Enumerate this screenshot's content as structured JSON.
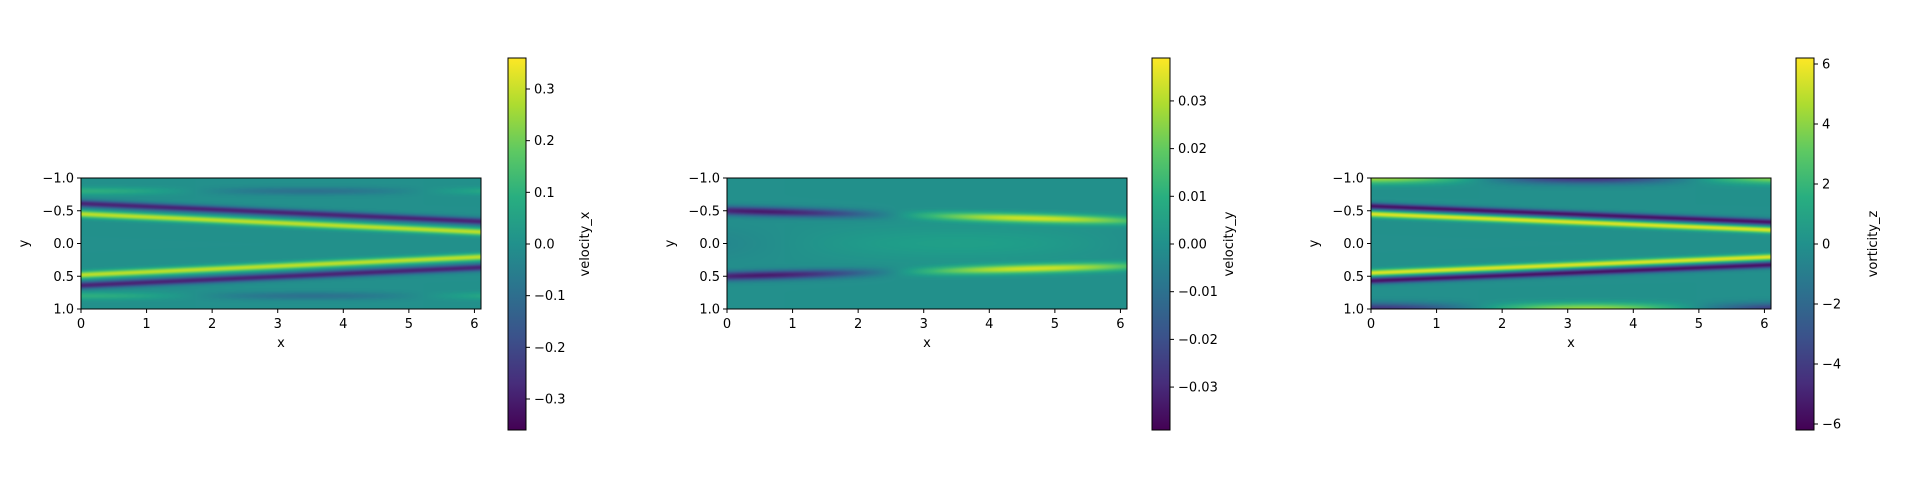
{
  "chart_data": [
    {
      "type": "heatmap",
      "field": "velocity_x",
      "xlabel": "x",
      "ylabel": "y",
      "x_ticks": [
        "0",
        "1",
        "2",
        "3",
        "4",
        "5",
        "6"
      ],
      "y_ticks": [
        "−1.0",
        "−0.5",
        "0.0",
        "0.5",
        "1.0"
      ],
      "xlim": [
        0,
        6.1
      ],
      "ylim": [
        1.0,
        -1.0
      ],
      "colorbar": {
        "label": "velocity_x",
        "range": [
          -0.36,
          0.36
        ],
        "ticks": [
          0.3,
          0.2,
          0.1,
          0.0,
          -0.1,
          -0.2,
          -0.3
        ],
        "tick_labels": [
          "0.3",
          "0.2",
          "0.1",
          "0.0",
          "−0.1",
          "−0.2",
          "−0.3"
        ]
      },
      "colormap": "viridis"
    },
    {
      "type": "heatmap",
      "field": "velocity_y",
      "xlabel": "x",
      "ylabel": "y",
      "x_ticks": [
        "0",
        "1",
        "2",
        "3",
        "4",
        "5",
        "6"
      ],
      "y_ticks": [
        "−1.0",
        "−0.5",
        "0.0",
        "0.5",
        "1.0"
      ],
      "xlim": [
        0,
        6.1
      ],
      "ylim": [
        1.0,
        -1.0
      ],
      "colorbar": {
        "label": "velocity_y",
        "range": [
          -0.039,
          0.039
        ],
        "ticks": [
          0.03,
          0.02,
          0.01,
          0.0,
          -0.01,
          -0.02,
          -0.03
        ],
        "tick_labels": [
          "0.03",
          "0.02",
          "0.01",
          "0.00",
          "−0.01",
          "−0.02",
          "−0.03"
        ]
      },
      "colormap": "viridis"
    },
    {
      "type": "heatmap",
      "field": "vorticity_z",
      "xlabel": "x",
      "ylabel": "y",
      "x_ticks": [
        "0",
        "1",
        "2",
        "3",
        "4",
        "5",
        "6"
      ],
      "y_ticks": [
        "−1.0",
        "−0.5",
        "0.0",
        "0.5",
        "1.0"
      ],
      "xlim": [
        0,
        6.1
      ],
      "ylim": [
        1.0,
        -1.0
      ],
      "colorbar": {
        "label": "vorticity_z",
        "range": [
          -6.2,
          6.2
        ],
        "ticks": [
          6,
          4,
          2,
          0,
          -2,
          -4,
          -6
        ],
        "tick_labels": [
          "6",
          "4",
          "2",
          "0",
          "−2",
          "−4",
          "−6"
        ]
      },
      "colormap": "viridis"
    }
  ]
}
